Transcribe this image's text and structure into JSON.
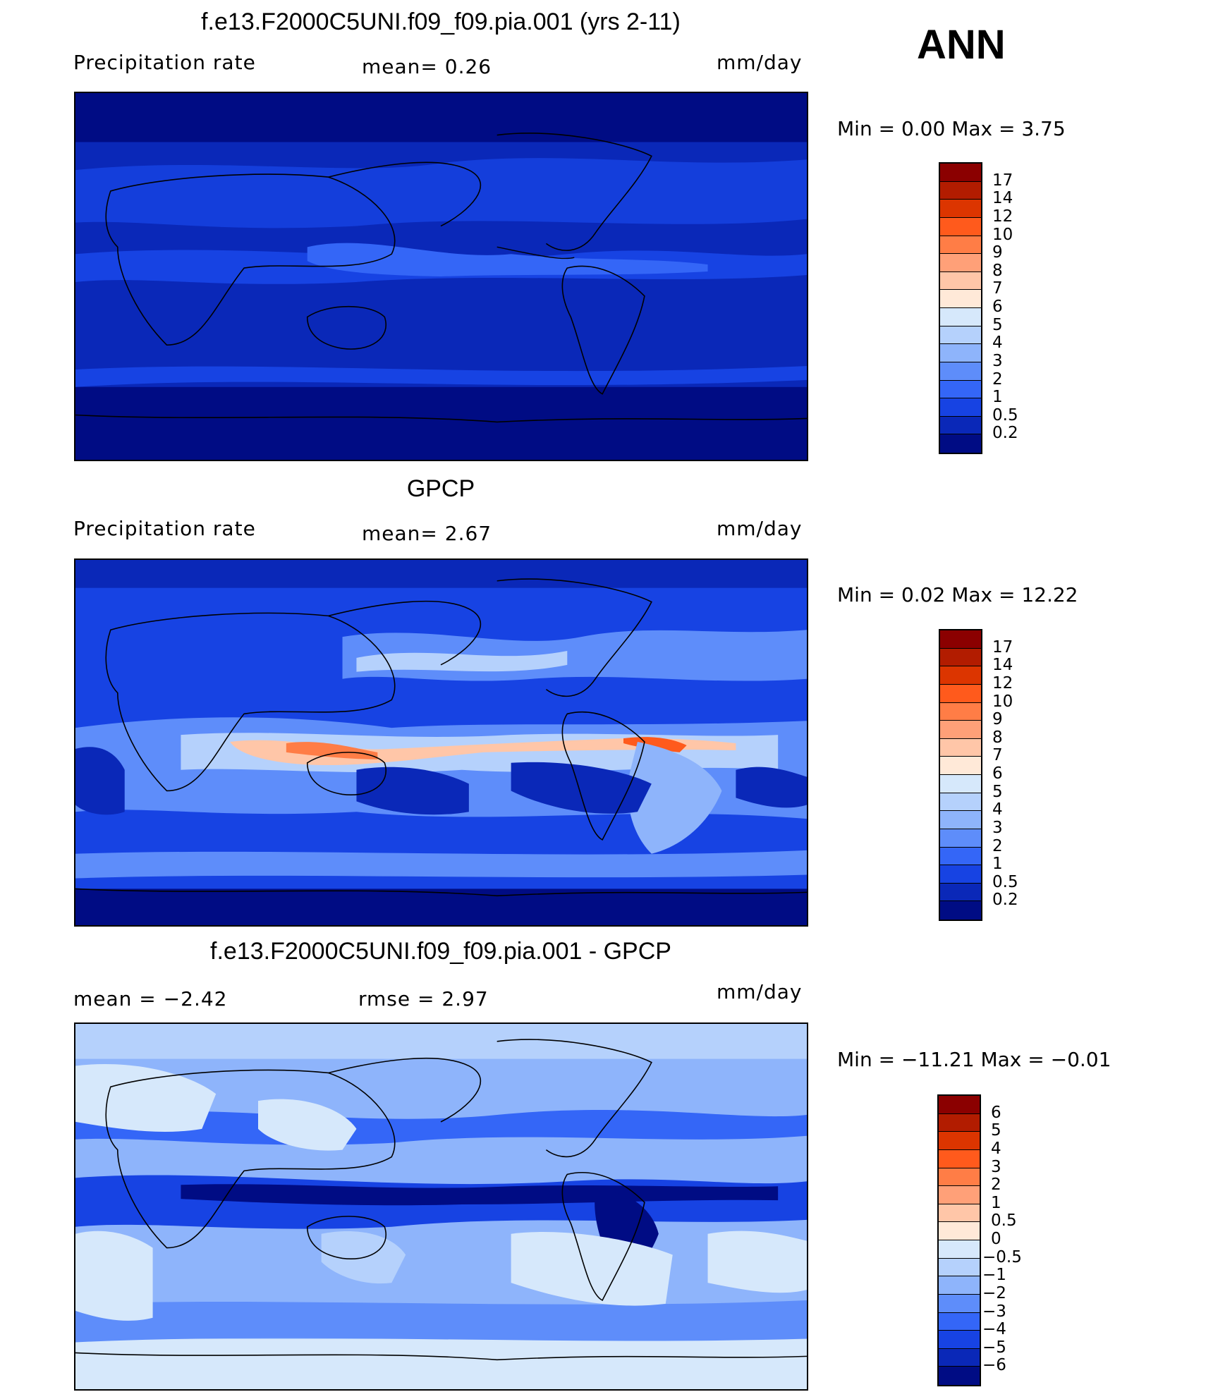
{
  "season": "ANN",
  "panels": [
    {
      "title": "f.e13.F2000C5UNI.f09_f09.pia.001 (yrs 2-11)",
      "left_label": "Precipitation  rate",
      "center_label": "mean=    0.26",
      "units": "mm/day",
      "minmax": "Min  =      0.00  Max  =      3.75",
      "colorbar_labels": [
        "17",
        "14",
        "12",
        "10",
        "9",
        "8",
        "7",
        "6",
        "5",
        "4",
        "3",
        "2",
        "1",
        "0.5",
        "0.2"
      ],
      "colorbar_colors": [
        "#8b0000",
        "#b21c00",
        "#dc3500",
        "#ff5a1c",
        "#ff7d46",
        "#ffa078",
        "#ffc6a8",
        "#ffe9d8",
        "#d6e8fb",
        "#b5d1fc",
        "#8eb4fb",
        "#5e8dfa",
        "#3466f7",
        "#1743e3",
        "#0a28b8",
        "#000c84"
      ],
      "data": {
        "mean": 0.26,
        "min": 0.0,
        "max": 3.75
      }
    },
    {
      "title": "GPCP",
      "left_label": "Precipitation  rate",
      "center_label": "mean=    2.67",
      "units": "mm/day",
      "minmax": "Min  =      0.02  Max  =    12.22",
      "colorbar_labels": [
        "17",
        "14",
        "12",
        "10",
        "9",
        "8",
        "7",
        "6",
        "5",
        "4",
        "3",
        "2",
        "1",
        "0.5",
        "0.2"
      ],
      "colorbar_colors": [
        "#8b0000",
        "#b21c00",
        "#dc3500",
        "#ff5a1c",
        "#ff7d46",
        "#ffa078",
        "#ffc6a8",
        "#ffe9d8",
        "#d6e8fb",
        "#b5d1fc",
        "#8eb4fb",
        "#5e8dfa",
        "#3466f7",
        "#1743e3",
        "#0a28b8",
        "#000c84"
      ],
      "data": {
        "mean": 2.67,
        "min": 0.02,
        "max": 12.22
      }
    },
    {
      "title": "f.e13.F2000C5UNI.f09_f09.pia.001 - GPCP",
      "left_label": "mean  =    −2.42",
      "center_label": "rmse  =     2.97",
      "units": "mm/day",
      "minmax": "Min  = −11.21  Max  =    −0.01",
      "colorbar_labels": [
        "6",
        "5",
        "4",
        "3",
        "2",
        "1",
        "0.5",
        "0",
        "−0.5",
        "−1",
        "−2",
        "−3",
        "−4",
        "−5",
        "−6"
      ],
      "colorbar_colors": [
        "#8b0000",
        "#b21c00",
        "#dc3500",
        "#ff5a1c",
        "#ff7d46",
        "#ffa078",
        "#ffc6a8",
        "#ffe9d8",
        "#d6e8fb",
        "#b5d1fc",
        "#8eb4fb",
        "#5e8dfa",
        "#3466f7",
        "#1743e3",
        "#0a28b8",
        "#000c84"
      ],
      "data": {
        "mean": -2.42,
        "rmse": 2.97,
        "min": -11.21,
        "max": -0.01
      }
    }
  ]
}
